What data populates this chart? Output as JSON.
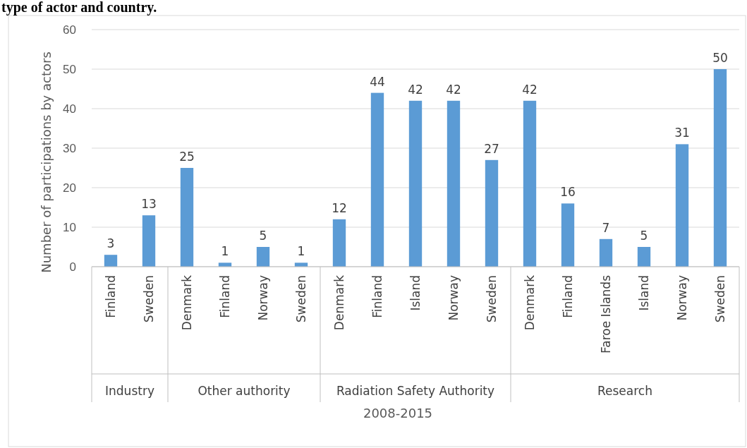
{
  "chart_data": {
    "type": "bar",
    "title": "type of actor and country.",
    "ylabel": "Number of  participations by actors",
    "xlabel": "2008-2015",
    "categories": [
      "Finland",
      "Sweden",
      "Denmark",
      "Finland",
      "Norway",
      "Sweden",
      "Denmark",
      "Finland",
      "Island",
      "Norway",
      "Sweden",
      "Denmark",
      "Finland",
      "Faroe Islands",
      "Island",
      "Norway",
      "Sweden"
    ],
    "values": [
      3,
      13,
      25,
      1,
      5,
      1,
      12,
      44,
      42,
      42,
      27,
      42,
      16,
      7,
      5,
      31,
      50
    ],
    "color": "#5b9bd5",
    "ylim": [
      0,
      60
    ],
    "yticks": [
      0,
      10,
      20,
      30,
      40,
      50,
      60
    ],
    "grid": "y",
    "data_labels": true,
    "annotations": [
      "Industry",
      "Other authority",
      "Radiation Safety Authority",
      "Research"
    ]
  }
}
